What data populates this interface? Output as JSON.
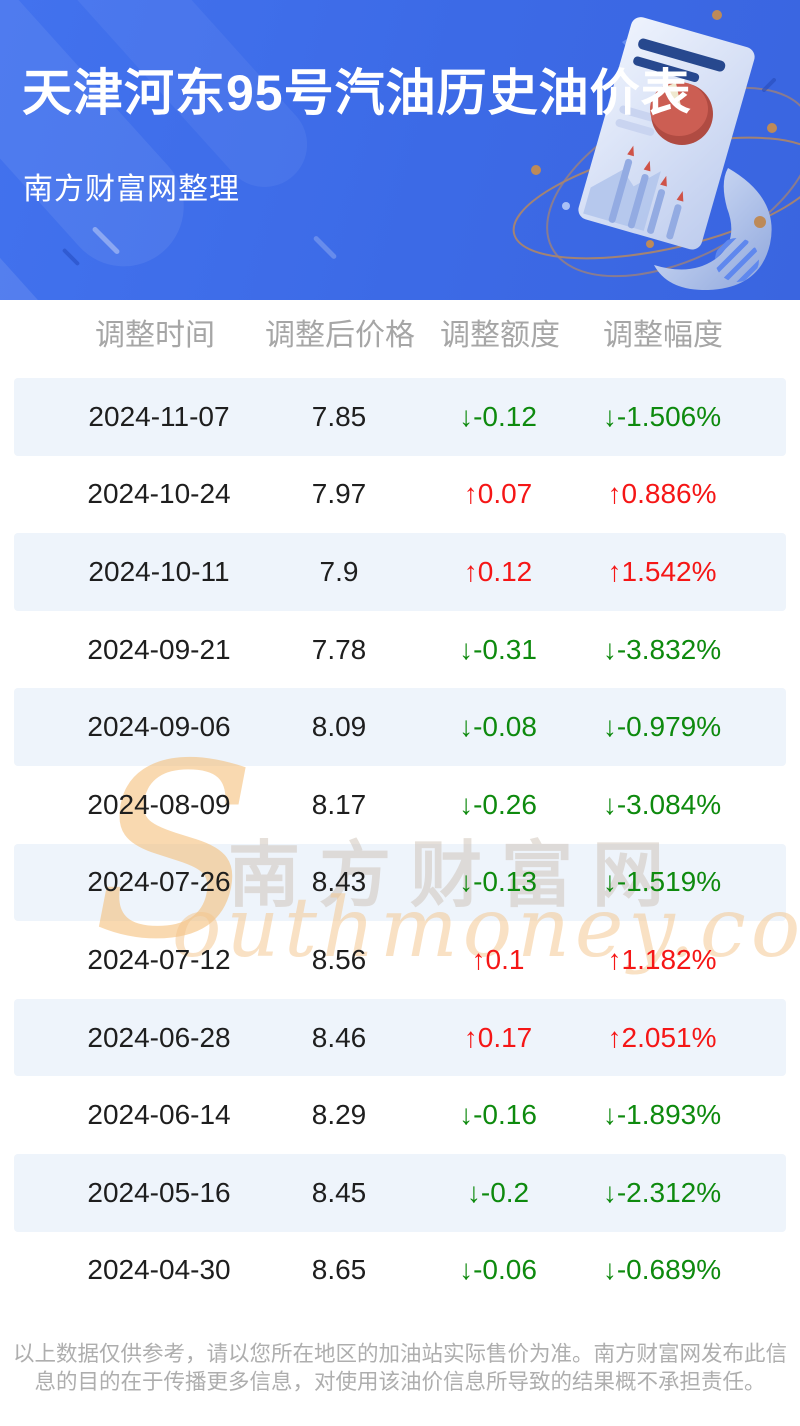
{
  "header": {
    "subtitle": "南方财富网整理"
  },
  "chart_data": {
    "type": "table",
    "title": "天津河东95号汽油历史油价表",
    "columns": [
      "调整时间",
      "调整后价格",
      "调整额度",
      "调整幅度"
    ],
    "rows": [
      {
        "date": "2024-11-07",
        "price": "7.85",
        "change": "-0.12",
        "change_pct": "-1.506%",
        "direction": "down"
      },
      {
        "date": "2024-10-24",
        "price": "7.97",
        "change": "0.07",
        "change_pct": "0.886%",
        "direction": "up"
      },
      {
        "date": "2024-10-11",
        "price": "7.9",
        "change": "0.12",
        "change_pct": "1.542%",
        "direction": "up"
      },
      {
        "date": "2024-09-21",
        "price": "7.78",
        "change": "-0.31",
        "change_pct": "-3.832%",
        "direction": "down"
      },
      {
        "date": "2024-09-06",
        "price": "8.09",
        "change": "-0.08",
        "change_pct": "-0.979%",
        "direction": "down"
      },
      {
        "date": "2024-08-09",
        "price": "8.17",
        "change": "-0.26",
        "change_pct": "-3.084%",
        "direction": "down"
      },
      {
        "date": "2024-07-26",
        "price": "8.43",
        "change": "-0.13",
        "change_pct": "-1.519%",
        "direction": "down"
      },
      {
        "date": "2024-07-12",
        "price": "8.56",
        "change": "0.1",
        "change_pct": "1.182%",
        "direction": "up"
      },
      {
        "date": "2024-06-28",
        "price": "8.46",
        "change": "0.17",
        "change_pct": "2.051%",
        "direction": "up"
      },
      {
        "date": "2024-06-14",
        "price": "8.29",
        "change": "-0.16",
        "change_pct": "-1.893%",
        "direction": "down"
      },
      {
        "date": "2024-05-16",
        "price": "8.45",
        "change": "-0.2",
        "change_pct": "-2.312%",
        "direction": "down"
      },
      {
        "date": "2024-04-30",
        "price": "8.65",
        "change": "-0.06",
        "change_pct": "-0.689%",
        "direction": "down"
      }
    ]
  },
  "glyphs": {
    "up_arrow": "↑",
    "down_arrow": "↓"
  },
  "colors": {
    "up": "#f51616",
    "down": "#0e8a0e",
    "banner_bg": "#3c6ae6",
    "row_alt_bg": "#eef4fb"
  },
  "watermark": {
    "initial": "S",
    "site_cn": "南方财富网",
    "site_en": "outhmoney.com"
  },
  "footer": {
    "disclaimer": "以上数据仅供参考，请以您所在地区的加油站实际售价为准。南方财富网发布此信息的目的在于传播更多信息，对使用该油价信息所导致的结果概不承担责任。"
  }
}
